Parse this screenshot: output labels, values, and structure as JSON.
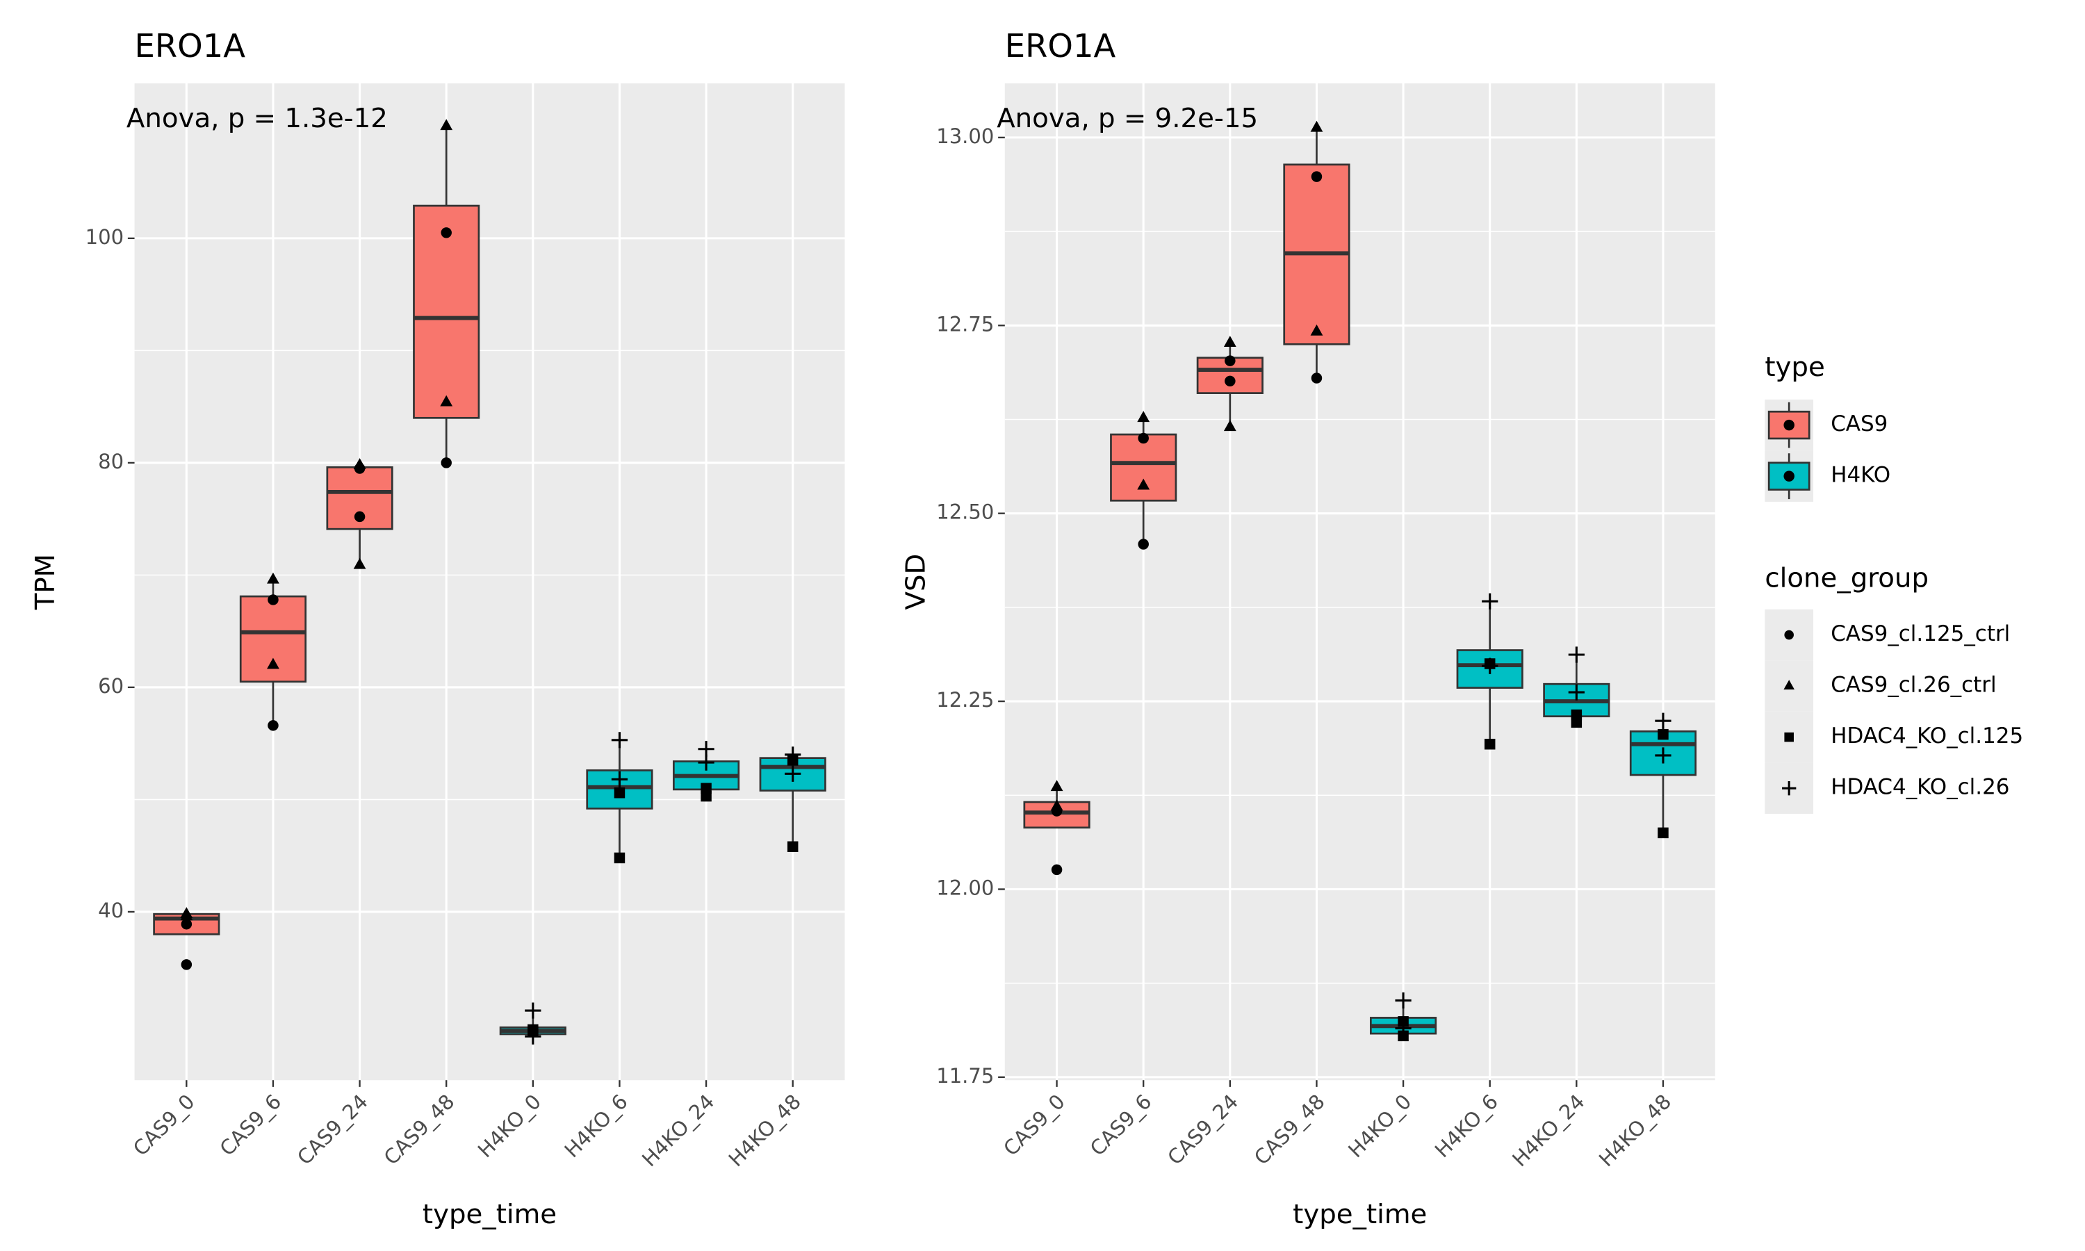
{
  "chart_data": [
    {
      "type": "box",
      "title": "ERO1A",
      "annotation": "Anova, p = 1.3e-12",
      "x_label": "type_time",
      "y_label": "TPM",
      "categories": [
        "CAS9_0",
        "CAS9_6",
        "CAS9_24",
        "CAS9_48",
        "H4KO_0",
        "H4KO_6",
        "H4KO_24",
        "H4KO_48"
      ],
      "ylim": [
        25.0,
        113.8
      ],
      "yticks": [
        40,
        60,
        80,
        100
      ],
      "grid": true,
      "boxes": [
        {
          "name": "CAS9",
          "color": "#F8766D",
          "x": [
            "CAS9_0",
            "CAS9_6",
            "CAS9_24",
            "CAS9_48"
          ],
          "lower": [
            38.0,
            56.6,
            70.9,
            80.0
          ],
          "q1": [
            38.0,
            60.5,
            74.1,
            84.0
          ],
          "median": [
            39.4,
            64.9,
            77.4,
            92.9
          ],
          "q3": [
            39.8,
            68.1,
            79.6,
            102.9
          ],
          "upper": [
            39.8,
            69.6,
            79.8,
            110.0
          ]
        },
        {
          "name": "H4KO",
          "color": "#00BFC4",
          "x": [
            "H4KO_0",
            "H4KO_6",
            "H4KO_24",
            "H4KO_48"
          ],
          "lower": [
            28.8,
            44.8,
            50.3,
            45.8
          ],
          "q1": [
            29.1,
            49.2,
            50.9,
            50.8
          ],
          "median": [
            29.4,
            51.1,
            52.1,
            52.9
          ],
          "q3": [
            29.7,
            52.6,
            53.4,
            53.7
          ],
          "upper": [
            31.2,
            55.3,
            54.5,
            54.0
          ]
        }
      ],
      "points": [
        {
          "name": "CAS9_cl.125_ctrl",
          "shape": "circle",
          "x": [
            "CAS9_0",
            "CAS9_0",
            "CAS9_6",
            "CAS9_6",
            "CAS9_24",
            "CAS9_24",
            "CAS9_48",
            "CAS9_48"
          ],
          "values": [
            35.3,
            38.9,
            67.8,
            56.6,
            79.5,
            75.2,
            100.5,
            80.0
          ]
        },
        {
          "name": "CAS9_cl.26_ctrl",
          "shape": "triangle",
          "x": [
            "CAS9_0",
            "CAS9_0",
            "CAS9_6",
            "CAS9_6",
            "CAS9_24",
            "CAS9_24",
            "CAS9_48",
            "CAS9_48"
          ],
          "values": [
            39.8,
            39.6,
            69.6,
            62.0,
            79.8,
            70.9,
            110.0,
            85.4
          ]
        },
        {
          "name": "HDAC4_KO_cl.125",
          "shape": "square",
          "x": [
            "H4KO_0",
            "H4KO_0",
            "H4KO_6",
            "H4KO_6",
            "H4KO_24",
            "H4KO_24",
            "H4KO_48",
            "H4KO_48"
          ],
          "values": [
            29.3,
            29.5,
            50.6,
            44.8,
            51.0,
            50.3,
            53.5,
            45.8
          ]
        },
        {
          "name": "HDAC4_KO_cl.26",
          "shape": "plus",
          "x": [
            "H4KO_0",
            "H4KO_0",
            "H4KO_6",
            "H4KO_6",
            "H4KO_24",
            "H4KO_24",
            "H4KO_48",
            "H4KO_48"
          ],
          "values": [
            31.2,
            28.9,
            55.3,
            51.8,
            54.5,
            53.3,
            54.0,
            52.3
          ]
        }
      ]
    },
    {
      "type": "box",
      "title": "ERO1A",
      "annotation": "Anova, p = 9.2e-15",
      "x_label": "type_time",
      "y_label": "VSD",
      "categories": [
        "CAS9_0",
        "CAS9_6",
        "CAS9_24",
        "CAS9_48",
        "H4KO_0",
        "H4KO_6",
        "H4KO_24",
        "H4KO_48"
      ],
      "ylim": [
        11.746,
        13.072
      ],
      "yticks": [
        {
          "value": 11.75,
          "label": "11.75"
        },
        {
          "value": 12,
          "label": "12.00"
        },
        {
          "value": 12.25,
          "label": "12.25"
        },
        {
          "value": 12.5,
          "label": "12.50"
        },
        {
          "value": 12.75,
          "label": "12.75"
        },
        {
          "value": 13,
          "label": "13.00"
        }
      ],
      "grid": true,
      "legend_position": "right",
      "box_legend_title": "type",
      "point_legend_title": "clone_group",
      "boxes": [
        {
          "name": "CAS9",
          "color": "#F8766D",
          "x": [
            "CAS9_0",
            "CAS9_6",
            "CAS9_24",
            "CAS9_48"
          ],
          "lower": [
            12.082,
            12.459,
            12.615,
            12.68
          ],
          "q1": [
            12.082,
            12.517,
            12.66,
            12.725
          ],
          "median": [
            12.102,
            12.567,
            12.691,
            12.846
          ],
          "q3": [
            12.116,
            12.605,
            12.707,
            12.964
          ],
          "upper": [
            12.136,
            12.627,
            12.727,
            13.013
          ]
        },
        {
          "name": "H4KO",
          "color": "#00BFC4",
          "x": [
            "H4KO_0",
            "H4KO_6",
            "H4KO_24",
            "H4KO_48"
          ],
          "lower": [
            11.803,
            12.193,
            12.222,
            12.075
          ],
          "q1": [
            11.808,
            12.268,
            12.23,
            12.152
          ],
          "median": [
            11.818,
            12.298,
            12.25,
            12.193
          ],
          "q3": [
            11.829,
            12.318,
            12.273,
            12.21
          ],
          "upper": [
            11.852,
            12.383,
            12.312,
            12.224
          ]
        }
      ],
      "points": [
        {
          "name": "CAS9_cl.125_ctrl",
          "shape": "circle",
          "x": [
            "CAS9_0",
            "CAS9_0",
            "CAS9_6",
            "CAS9_6",
            "CAS9_24",
            "CAS9_24",
            "CAS9_48",
            "CAS9_48"
          ],
          "values": [
            12.104,
            12.026,
            12.6,
            12.459,
            12.703,
            12.676,
            12.948,
            12.68
          ]
        },
        {
          "name": "CAS9_cl.26_ctrl",
          "shape": "triangle",
          "x": [
            "CAS9_0",
            "CAS9_0",
            "CAS9_6",
            "CAS9_6",
            "CAS9_24",
            "CAS9_24",
            "CAS9_48",
            "CAS9_48"
          ],
          "values": [
            12.136,
            12.11,
            12.627,
            12.537,
            12.727,
            12.615,
            13.013,
            12.742
          ]
        },
        {
          "name": "HDAC4_KO_cl.125",
          "shape": "square",
          "x": [
            "H4KO_0",
            "H4KO_0",
            "H4KO_6",
            "H4KO_6",
            "H4KO_24",
            "H4KO_24",
            "H4KO_48",
            "H4KO_48"
          ],
          "values": [
            11.824,
            11.805,
            12.3,
            12.193,
            12.232,
            12.222,
            12.206,
            12.075
          ]
        },
        {
          "name": "HDAC4_KO_cl.26",
          "shape": "plus",
          "x": [
            "H4KO_0",
            "H4KO_0",
            "H4KO_6",
            "H4KO_6",
            "H4KO_24",
            "H4KO_24",
            "H4KO_48",
            "H4KO_48"
          ],
          "values": [
            11.852,
            11.815,
            12.383,
            12.297,
            12.312,
            12.262,
            12.224,
            12.178
          ]
        }
      ]
    }
  ]
}
